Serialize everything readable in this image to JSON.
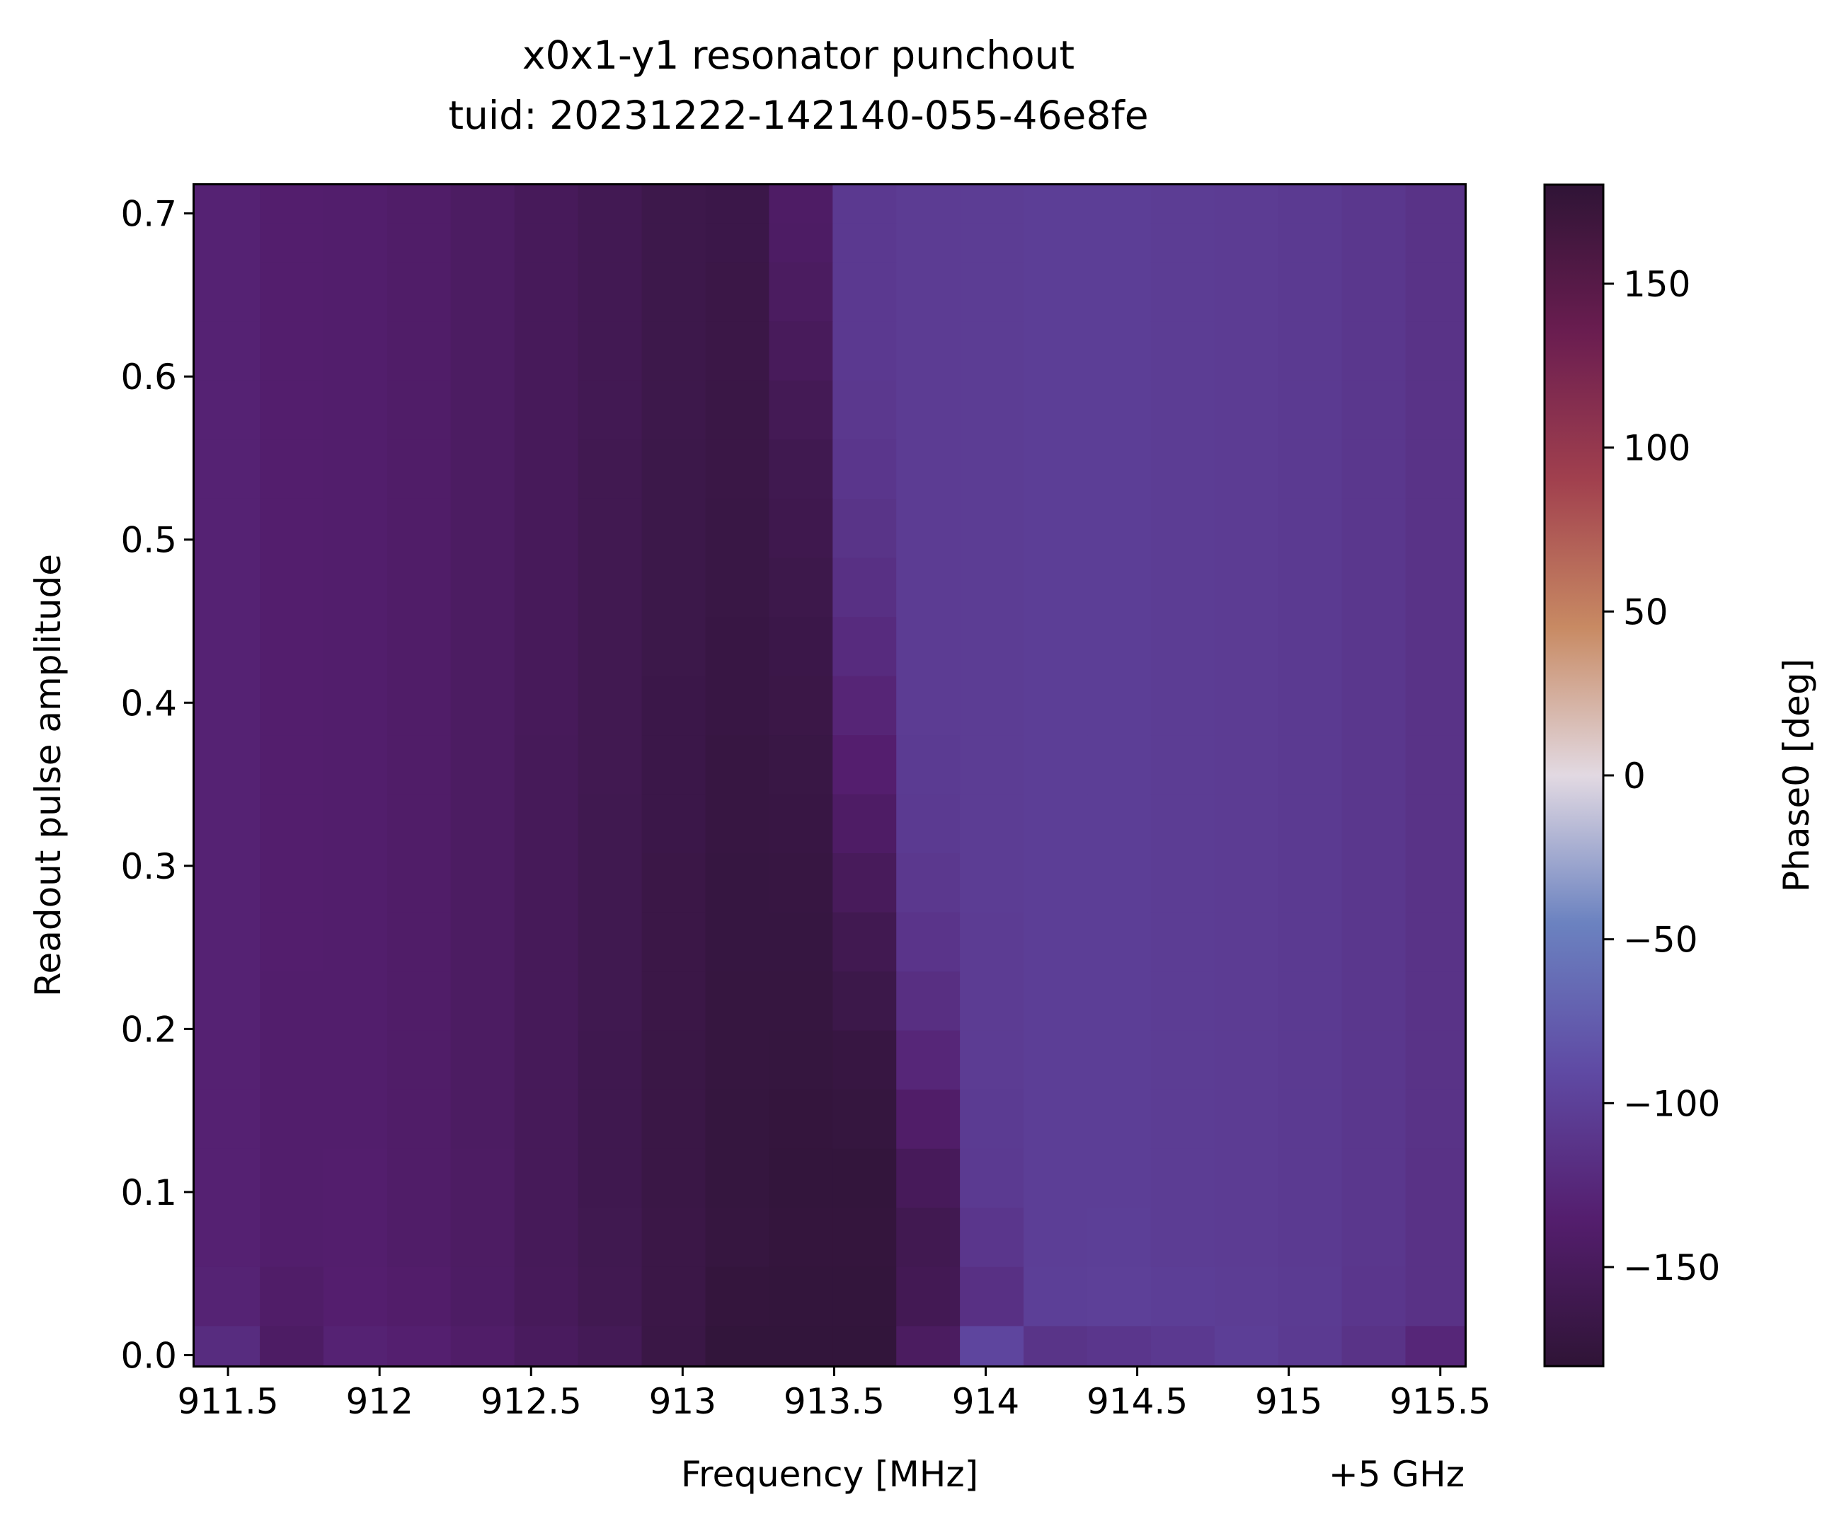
{
  "chart_data": {
    "type": "heatmap",
    "title_line1": "x0x1-y1 resonator punchout",
    "title_line2": "tuid: 20231222-142140-055-46e8fe",
    "xlabel": "Frequency [MHz]",
    "x_offset_label": "+5 GHz",
    "ylabel": "Readout pulse amplitude",
    "colorbar_label": "Phase0 [deg]",
    "colormap": "twilight_shifted",
    "colorbar_range": [
      -180,
      180
    ],
    "x_tick_labels": [
      "911.5",
      "912",
      "912.5",
      "913",
      "913.5",
      "914",
      "914.5",
      "915",
      "915.5"
    ],
    "x_tick_values": [
      911.5,
      912,
      912.5,
      913,
      913.5,
      914,
      914.5,
      915,
      915.5
    ],
    "y_tick_labels": [
      "0.0",
      "0.1",
      "0.2",
      "0.3",
      "0.4",
      "0.5",
      "0.6",
      "0.7"
    ],
    "y_tick_values": [
      0.0,
      0.1,
      0.2,
      0.3,
      0.4,
      0.5,
      0.6,
      0.7
    ],
    "colorbar_tick_labels": [
      "150",
      "100",
      "50",
      "0",
      "−50",
      "−100",
      "−150"
    ],
    "colorbar_tick_values": [
      150,
      100,
      50,
      0,
      -50,
      -100,
      -150
    ],
    "xlim": [
      911.39,
      915.58
    ],
    "ylim": [
      -0.0063,
      0.7172
    ],
    "x": [
      911.5,
      911.71,
      911.92,
      912.13,
      912.34,
      912.55,
      912.76,
      912.97,
      913.18,
      913.39,
      913.6,
      913.81,
      914.02,
      914.23,
      914.44,
      914.65,
      914.86,
      915.07,
      915.28,
      915.49
    ],
    "y": [
      0.0,
      0.0362,
      0.0725,
      0.1087,
      0.1449,
      0.1812,
      0.2174,
      0.2536,
      0.2899,
      0.3261,
      0.3623,
      0.3985,
      0.4348,
      0.471,
      0.5072,
      0.5435,
      0.5797,
      0.6159,
      0.6522,
      0.6884,
      0.7
    ],
    "z": [
      [
        -121,
        -143,
        -131,
        -134,
        -140,
        -148,
        -154,
        -167,
        -176,
        -176,
        -176,
        -146,
        -95,
        -113,
        -110,
        -107,
        -102,
        -106,
        -114,
        -127
      ],
      [
        -130,
        -140,
        -135,
        -138,
        -143,
        -151,
        -158,
        -166,
        -174,
        -175,
        -175,
        -156,
        -117,
        -101,
        -100,
        -102,
        -103,
        -105,
        -110,
        -115
      ],
      [
        -132,
        -137,
        -136,
        -140,
        -144,
        -152,
        -159,
        -166,
        -172,
        -174,
        -174,
        -158,
        -110,
        -102,
        -101,
        -103,
        -104,
        -106,
        -109,
        -115
      ],
      [
        -132,
        -137,
        -136,
        -140,
        -144,
        -152,
        -160,
        -167,
        -173,
        -175,
        -175,
        -151,
        -106,
        -102,
        -102,
        -103,
        -104,
        -106,
        -109,
        -115
      ],
      [
        -132,
        -137,
        -137,
        -140,
        -145,
        -152,
        -160,
        -167,
        -173,
        -174,
        -173,
        -140,
        -105,
        -102,
        -102,
        -103,
        -104,
        -106,
        -109,
        -114
      ],
      [
        -132,
        -137,
        -137,
        -140,
        -145,
        -152,
        -160,
        -167,
        -172,
        -173,
        -170,
        -127,
        -104,
        -102,
        -102,
        -103,
        -104,
        -106,
        -109,
        -114
      ],
      [
        -131,
        -137,
        -137,
        -140,
        -145,
        -152,
        -159,
        -166,
        -172,
        -172,
        -164,
        -118,
        -104,
        -102,
        -102,
        -103,
        -104,
        -106,
        -109,
        -114
      ],
      [
        -131,
        -136,
        -137,
        -140,
        -145,
        -152,
        -159,
        -166,
        -171,
        -171,
        -158,
        -112,
        -104,
        -102,
        -102,
        -103,
        -104,
        -106,
        -109,
        -114
      ],
      [
        -131,
        -136,
        -137,
        -140,
        -145,
        -152,
        -159,
        -166,
        -171,
        -170,
        -150,
        -108,
        -103,
        -102,
        -102,
        -103,
        -104,
        -106,
        -109,
        -114
      ],
      [
        -131,
        -136,
        -137,
        -140,
        -145,
        -152,
        -159,
        -165,
        -170,
        -169,
        -142,
        -106,
        -103,
        -102,
        -102,
        -103,
        -104,
        -106,
        -109,
        -114
      ],
      [
        -131,
        -136,
        -137,
        -140,
        -145,
        -152,
        -158,
        -165,
        -170,
        -168,
        -135,
        -105,
        -103,
        -102,
        -102,
        -103,
        -104,
        -106,
        -109,
        -114
      ],
      [
        -131,
        -136,
        -137,
        -140,
        -145,
        -151,
        -158,
        -165,
        -169,
        -166,
        -128,
        -104,
        -103,
        -102,
        -102,
        -103,
        -104,
        -106,
        -109,
        -114
      ],
      [
        -131,
        -136,
        -137,
        -140,
        -145,
        -151,
        -158,
        -164,
        -169,
        -165,
        -122,
        -104,
        -103,
        -102,
        -102,
        -103,
        -104,
        -106,
        -109,
        -114
      ],
      [
        -131,
        -136,
        -137,
        -140,
        -145,
        -151,
        -158,
        -164,
        -168,
        -163,
        -117,
        -104,
        -103,
        -102,
        -102,
        -103,
        -104,
        -106,
        -109,
        -114
      ],
      [
        -131,
        -136,
        -137,
        -140,
        -145,
        -151,
        -158,
        -164,
        -168,
        -161,
        -113,
        -104,
        -103,
        -102,
        -102,
        -103,
        -104,
        -106,
        -109,
        -114
      ],
      [
        -131,
        -136,
        -137,
        -140,
        -145,
        -151,
        -158,
        -164,
        -167,
        -159,
        -110,
        -104,
        -103,
        -102,
        -102,
        -103,
        -104,
        -106,
        -109,
        -114
      ],
      [
        -131,
        -136,
        -137,
        -140,
        -145,
        -151,
        -157,
        -163,
        -167,
        -155,
        -108,
        -104,
        -103,
        -102,
        -102,
        -103,
        -104,
        -106,
        -109,
        -114
      ],
      [
        -131,
        -136,
        -137,
        -140,
        -145,
        -151,
        -157,
        -163,
        -166,
        -150,
        -107,
        -104,
        -103,
        -102,
        -102,
        -103,
        -104,
        -106,
        -109,
        -114
      ],
      [
        -131,
        -136,
        -137,
        -140,
        -145,
        -151,
        -157,
        -163,
        -166,
        -146,
        -107,
        -104,
        -103,
        -102,
        -102,
        -103,
        -104,
        -106,
        -109,
        -114
      ],
      [
        -131,
        -136,
        -137,
        -140,
        -145,
        -151,
        -157,
        -163,
        -165,
        -143,
        -107,
        -104,
        -103,
        -102,
        -102,
        -103,
        -104,
        -106,
        -109,
        -114
      ],
      [
        -131,
        -136,
        -137,
        -140,
        -145,
        -151,
        -157,
        -163,
        -165,
        -142,
        -107,
        -104,
        -103,
        -102,
        -102,
        -103,
        -104,
        -106,
        -109,
        -114
      ]
    ]
  }
}
